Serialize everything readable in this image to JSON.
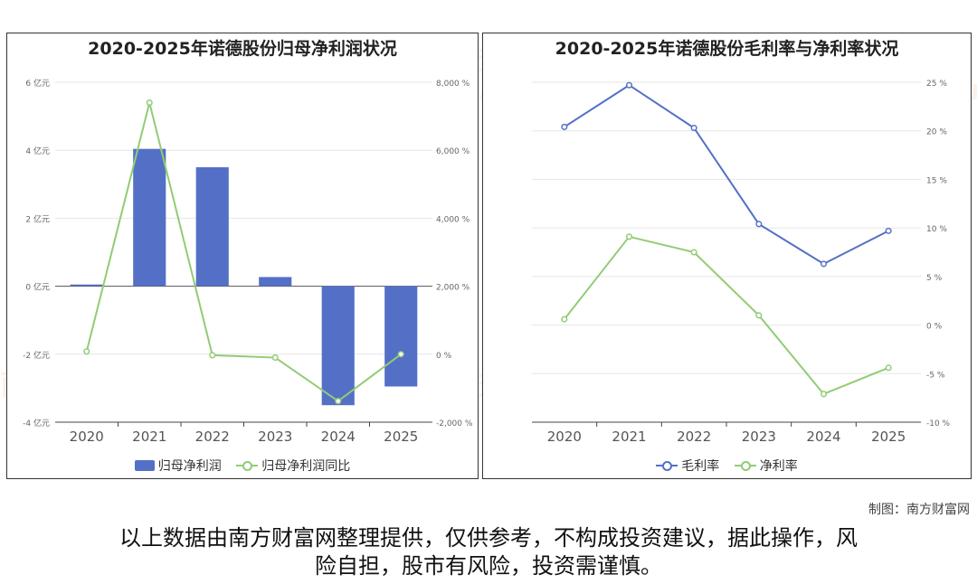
{
  "chart_data": [
    {
      "type": "bar",
      "title": "2020-2025年诺德股份归母净利润状况",
      "categories": [
        "2020",
        "2021",
        "2022",
        "2023",
        "2024",
        "2025"
      ],
      "series": [
        {
          "name": "归母净利润",
          "type": "bar",
          "axis": "left",
          "color": "#5470c6",
          "values": [
            0.05,
            4.04,
            3.5,
            0.27,
            -3.5,
            -2.95
          ]
        },
        {
          "name": "归母净利润同比",
          "type": "line",
          "axis": "right",
          "color": "#91cc75",
          "values": [
            80,
            7400,
            -30,
            -100,
            -1380,
            0
          ]
        }
      ],
      "y_left": {
        "ticks": [
          6,
          4,
          2,
          0,
          -2,
          -4
        ],
        "tick_labels": [
          "6 亿元",
          "4 亿元",
          "2 亿元",
          "0 亿元",
          "-2 亿元",
          "-4 亿元"
        ],
        "ylim": [
          -4,
          6
        ]
      },
      "y_right": {
        "ticks": [
          8000,
          6000,
          4000,
          2000,
          0,
          -2000
        ],
        "tick_labels": [
          "8,000 %",
          "6,000 %",
          "4,000 %",
          "2,000 %",
          "0 %",
          "-2,000 %"
        ],
        "ylim": [
          -2000,
          8000
        ]
      },
      "grid": true,
      "legend": "bottom"
    },
    {
      "type": "line",
      "title": "2020-2025年诺德股份毛利率与净利率状况",
      "categories": [
        "2020",
        "2021",
        "2022",
        "2023",
        "2024",
        "2025"
      ],
      "series": [
        {
          "name": "毛利率",
          "color": "#5470c6",
          "values": [
            20.4,
            24.7,
            20.3,
            10.4,
            6.3,
            9.7
          ]
        },
        {
          "name": "净利率",
          "color": "#91cc75",
          "values": [
            0.6,
            9.1,
            7.5,
            1.0,
            -7.1,
            -4.4
          ]
        }
      ],
      "y_right": {
        "ticks": [
          25,
          20,
          15,
          10,
          5,
          0,
          -5,
          -10
        ],
        "tick_labels": [
          "25 %",
          "20 %",
          "15 %",
          "10 %",
          "5 %",
          "0 %",
          "-5 %",
          "-10 %"
        ],
        "ylim": [
          -10,
          25
        ]
      },
      "grid": true,
      "legend": "bottom"
    }
  ],
  "watermark": {
    "cn": "南方财富网",
    "en": "southmoney.com"
  },
  "credit": "制图：南方财富网",
  "disclaimer_line1": "以上数据由南方财富网整理提供，仅供参考，不构成投资建议，据此操作，风",
  "disclaimer_line2": "险自担，股市有风险，投资需谨慎。"
}
